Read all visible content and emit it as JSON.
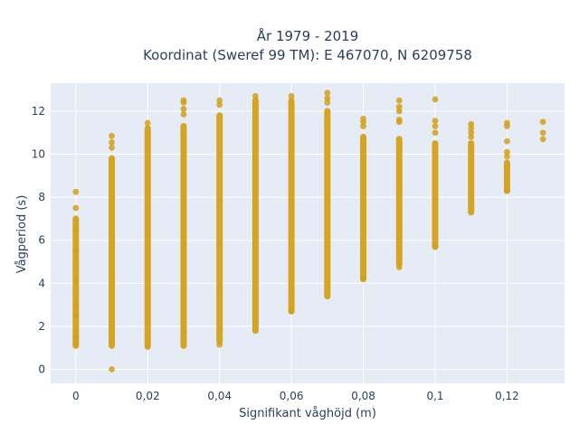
{
  "chart_data": {
    "type": "scatter",
    "title_line1": "År 1979 - 2019",
    "title_line2": "Koordinat (Sweref 99 TM): E 467070, N 6209758",
    "xlabel": "Signifikant våghöjd (m)",
    "ylabel": "Vågperiod (s)",
    "xlim": [
      -0.007,
      0.136
    ],
    "ylim": [
      -0.65,
      13.3
    ],
    "x_ticks": [
      {
        "value": 0,
        "label": "0"
      },
      {
        "value": 0.02,
        "label": "0,02"
      },
      {
        "value": 0.04,
        "label": "0,04"
      },
      {
        "value": 0.06,
        "label": "0,06"
      },
      {
        "value": 0.08,
        "label": "0,08"
      },
      {
        "value": 0.1,
        "label": "0,1"
      },
      {
        "value": 0.12,
        "label": "0,12"
      }
    ],
    "y_ticks": [
      {
        "value": 0,
        "label": "0"
      },
      {
        "value": 2,
        "label": "2"
      },
      {
        "value": 4,
        "label": "4"
      },
      {
        "value": 6,
        "label": "6"
      },
      {
        "value": 8,
        "label": "8"
      },
      {
        "value": 10,
        "label": "10"
      },
      {
        "value": 12,
        "label": "12"
      }
    ],
    "grid": true,
    "background_color": "#e5ecf6",
    "marker_color": "#d4a017",
    "series": [
      {
        "columns": [
          {
            "x": 0.0,
            "range": [
              1.1,
              7.0
            ],
            "points": [
              8.25,
              7.5,
              1.2,
              1.5,
              2.5,
              3.0,
              4.1,
              5.5,
              6.5
            ]
          },
          {
            "x": 0.01,
            "range": [
              1.1,
              9.8
            ],
            "points": [
              0.0,
              10.3,
              10.55,
              10.85
            ]
          },
          {
            "x": 0.02,
            "range": [
              1.1,
              11.2
            ],
            "points": [
              11.45,
              1.05
            ]
          },
          {
            "x": 0.03,
            "range": [
              1.1,
              11.3
            ],
            "points": [
              11.85,
              12.1,
              12.4,
              12.5
            ]
          },
          {
            "x": 0.04,
            "range": [
              1.3,
              11.8
            ],
            "points": [
              12.3,
              12.5,
              1.15
            ]
          },
          {
            "x": 0.05,
            "range": [
              1.8,
              12.5
            ],
            "points": [
              12.7
            ]
          },
          {
            "x": 0.06,
            "range": [
              2.7,
              12.4
            ],
            "points": [
              12.5,
              12.7,
              2.7
            ]
          },
          {
            "x": 0.07,
            "range": [
              3.4,
              12.0
            ],
            "points": [
              12.4,
              12.6,
              12.85
            ]
          },
          {
            "x": 0.08,
            "range": [
              4.2,
              10.8
            ],
            "points": [
              11.3,
              11.5,
              11.65,
              4.2
            ]
          },
          {
            "x": 0.09,
            "range": [
              4.9,
              10.7
            ],
            "points": [
              11.5,
              11.6,
              12.0,
              12.2,
              12.5,
              4.75
            ]
          },
          {
            "x": 0.1,
            "range": [
              5.7,
              10.5
            ],
            "points": [
              11.0,
              11.3,
              11.55,
              12.55,
              5.7
            ]
          },
          {
            "x": 0.11,
            "range": [
              7.3,
              10.5
            ],
            "points": [
              10.8,
              11.0,
              11.2,
              11.4
            ]
          },
          {
            "x": 0.12,
            "range": [
              8.3,
              9.6
            ],
            "points": [
              9.9,
              10.1,
              10.6,
              11.3,
              11.45,
              8.3
            ]
          },
          {
            "x": 0.13,
            "range": null,
            "points": [
              10.7,
              11.0,
              11.5
            ]
          }
        ]
      }
    ]
  }
}
